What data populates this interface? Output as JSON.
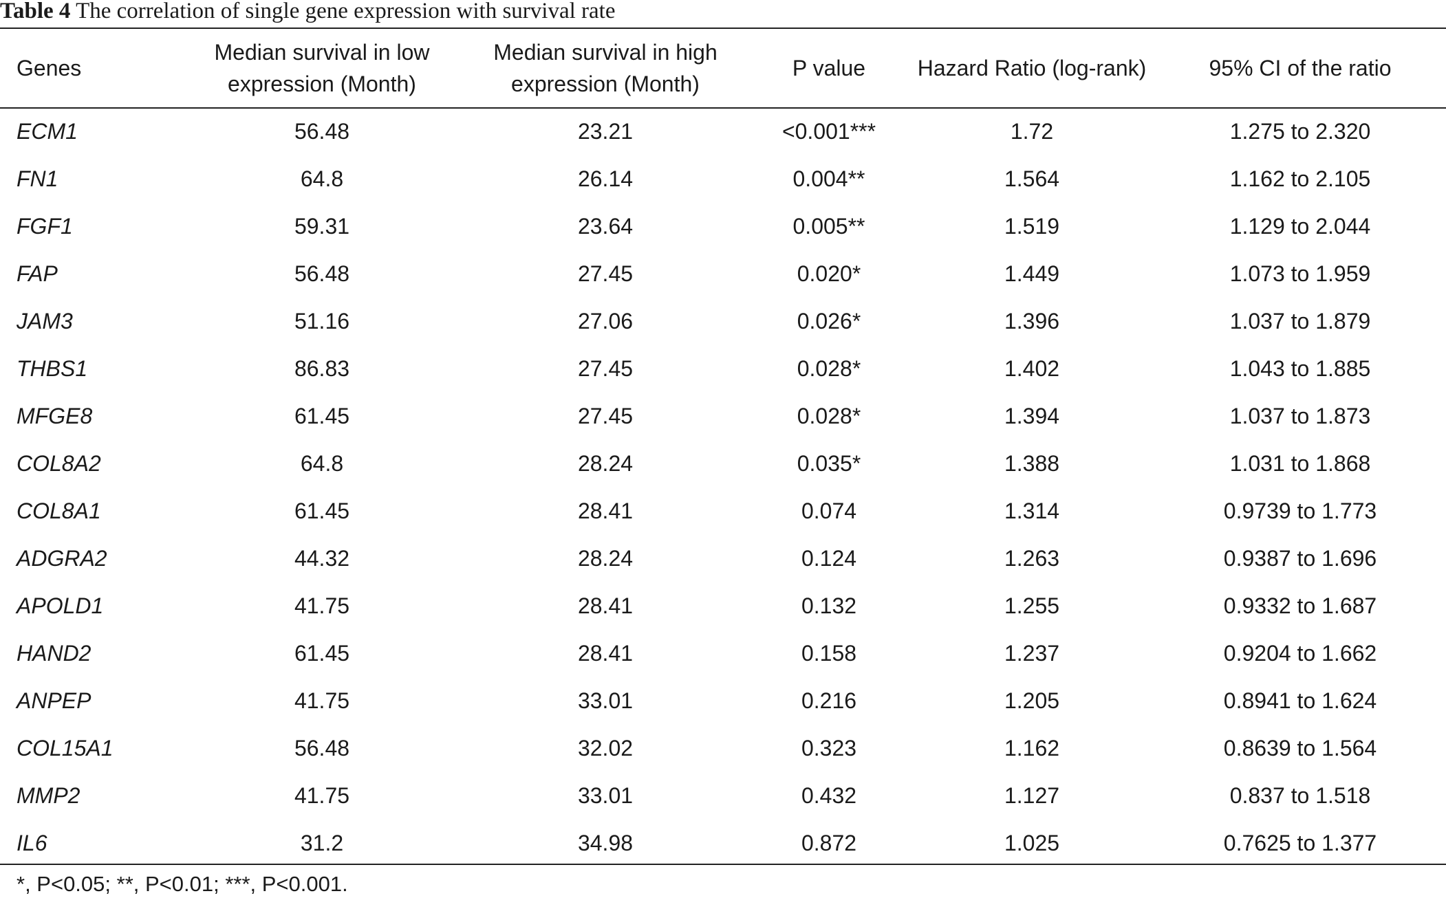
{
  "caption": {
    "label": "Table 4",
    "text": "The correlation of single gene expression with survival rate"
  },
  "columns": [
    "Genes",
    "Median survival in low expression (Month)",
    "Median survival in high expression (Month)",
    "P value",
    "Hazard Ratio (log-rank)",
    "95% CI of the ratio"
  ],
  "rows": [
    [
      "ECM1",
      "56.48",
      "23.21",
      "<0.001***",
      "1.72",
      "1.275 to 2.320"
    ],
    [
      "FN1",
      "64.8",
      "26.14",
      "0.004**",
      "1.564",
      "1.162 to 2.105"
    ],
    [
      "FGF1",
      "59.31",
      "23.64",
      "0.005**",
      "1.519",
      "1.129 to 2.044"
    ],
    [
      "FAP",
      "56.48",
      "27.45",
      "0.020*",
      "1.449",
      "1.073 to 1.959"
    ],
    [
      "JAM3",
      "51.16",
      "27.06",
      "0.026*",
      "1.396",
      "1.037 to 1.879"
    ],
    [
      "THBS1",
      "86.83",
      "27.45",
      "0.028*",
      "1.402",
      "1.043 to 1.885"
    ],
    [
      "MFGE8",
      "61.45",
      "27.45",
      "0.028*",
      "1.394",
      "1.037 to 1.873"
    ],
    [
      "COL8A2",
      "64.8",
      "28.24",
      "0.035*",
      "1.388",
      "1.031 to 1.868"
    ],
    [
      "COL8A1",
      "61.45",
      "28.41",
      "0.074",
      "1.314",
      "0.9739 to 1.773"
    ],
    [
      "ADGRA2",
      "44.32",
      "28.24",
      "0.124",
      "1.263",
      "0.9387 to 1.696"
    ],
    [
      "APOLD1",
      "41.75",
      "28.41",
      "0.132",
      "1.255",
      "0.9332 to 1.687"
    ],
    [
      "HAND2",
      "61.45",
      "28.41",
      "0.158",
      "1.237",
      "0.9204 to 1.662"
    ],
    [
      "ANPEP",
      "41.75",
      "33.01",
      "0.216",
      "1.205",
      "0.8941 to 1.624"
    ],
    [
      "COL15A1",
      "56.48",
      "32.02",
      "0.323",
      "1.162",
      "0.8639 to 1.564"
    ],
    [
      "MMP2",
      "41.75",
      "33.01",
      "0.432",
      "1.127",
      "0.837 to 1.518"
    ],
    [
      "IL6",
      "31.2",
      "34.98",
      "0.872",
      "1.025",
      "0.7625 to 1.377"
    ]
  ],
  "footnote": "*, P<0.05; **, P<0.01; ***, P<0.001."
}
